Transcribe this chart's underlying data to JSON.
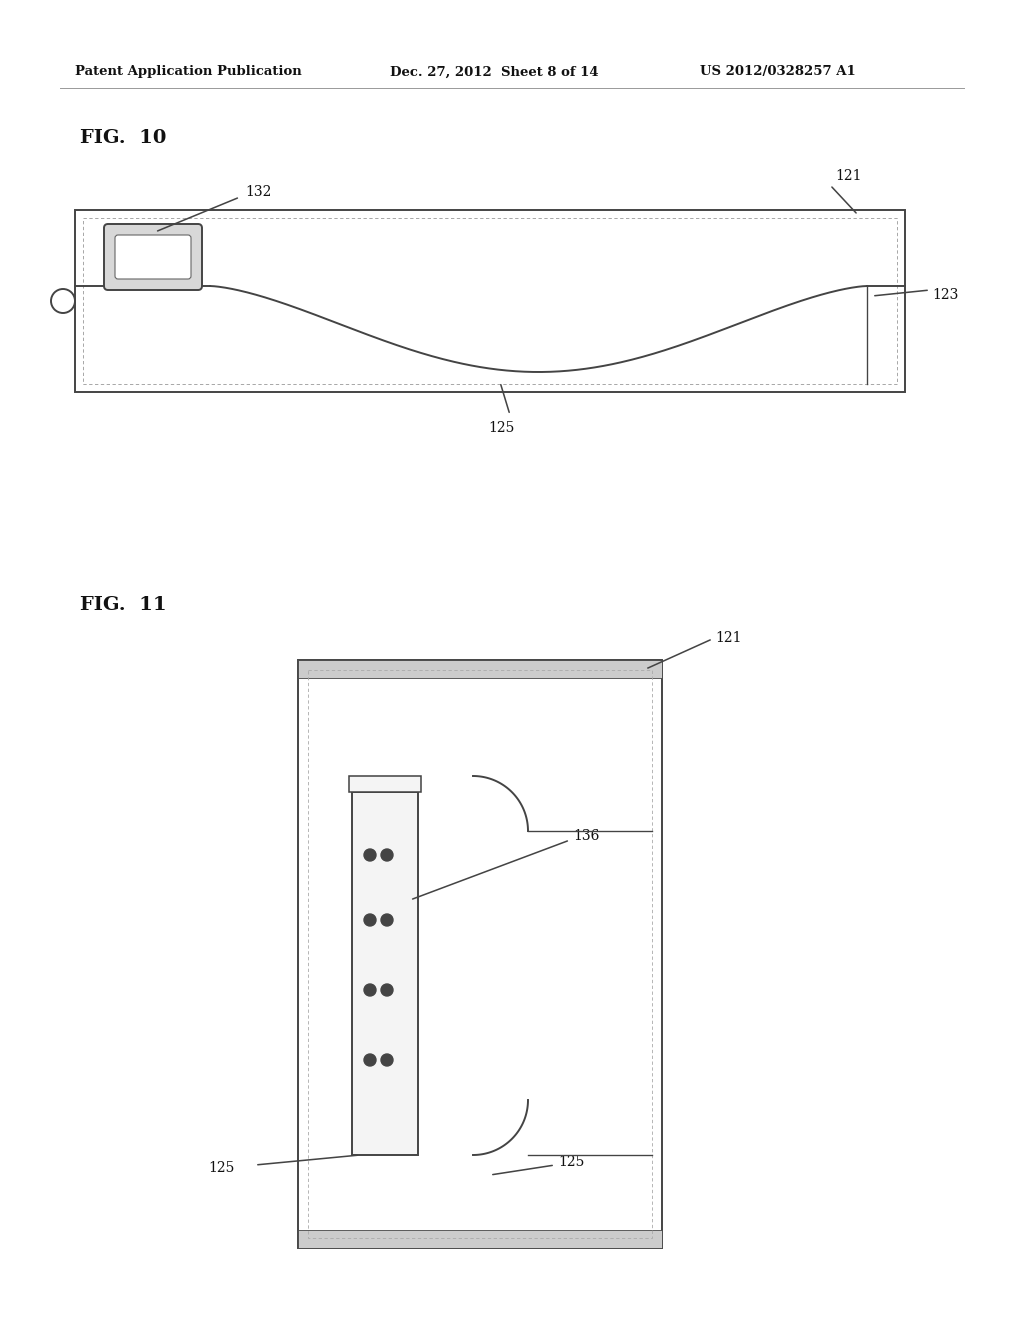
{
  "bg_color": "#ffffff",
  "header_text": "Patent Application Publication",
  "header_date": "Dec. 27, 2012  Sheet 8 of 14",
  "header_patent": "US 2012/0328257 A1",
  "fig10_label": "FIG.  10",
  "fig11_label": "FIG.  11",
  "line_color": "#444444",
  "line_width": 1.4,
  "text_color": "#111111"
}
